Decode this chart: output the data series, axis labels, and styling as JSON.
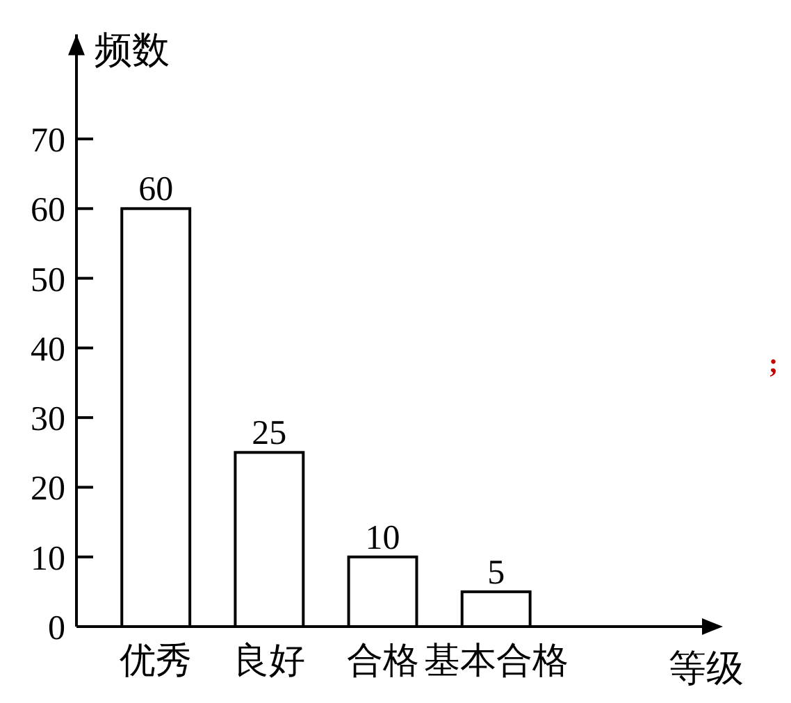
{
  "chart_data": {
    "type": "bar",
    "ylabel": "频数",
    "xlabel": "等级",
    "categories": [
      "优秀",
      "良好",
      "合格",
      "基本合格"
    ],
    "values": [
      60,
      25,
      10,
      5
    ],
    "color": "#ffffff",
    "ylim": [
      0,
      85
    ],
    "yticks": [
      0,
      10,
      20,
      30,
      40,
      50,
      60,
      70
    ],
    "data_labels": true,
    "grid": false,
    "annotations": [
      ";"
    ]
  }
}
